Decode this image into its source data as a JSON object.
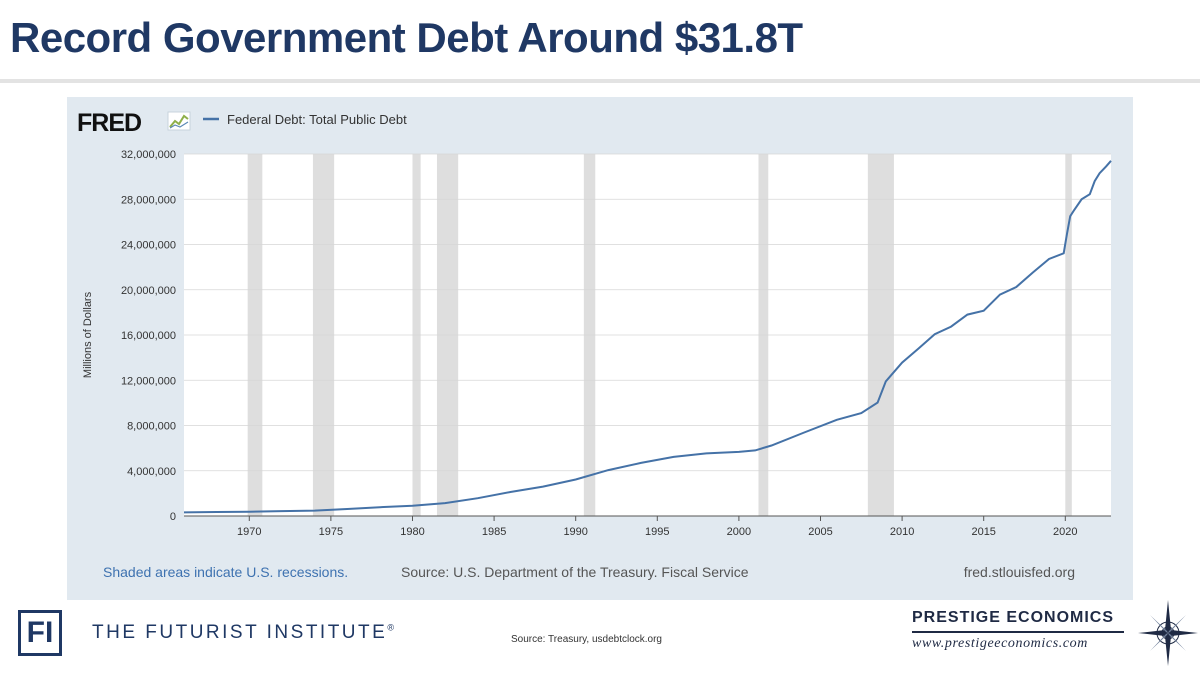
{
  "slide": {
    "title": "Record Government Debt Around $31.8T"
  },
  "fred": {
    "logo_text": "FRED",
    "legend_label": "Federal Debt: Total Public Debt",
    "footer_recessions": "Shaded areas indicate U.S. recessions.",
    "footer_source": "Source: U.S. Department of the Treasury. Fiscal Service",
    "footer_site": "fred.stlouisfed.org"
  },
  "footer": {
    "fi_logo": "FI",
    "fi_name": "THE FUTURIST INSTITUTE",
    "fi_mark": "®",
    "source": "Source: Treasury, usdebtclock.org",
    "prestige_name": "PRESTIGE ECONOMICS",
    "prestige_url": "www.prestigeeconomics.com"
  },
  "chart_data": {
    "type": "line",
    "title": "",
    "xlabel": "",
    "ylabel": "Millions of Dollars",
    "xlim": [
      1966,
      2022.8
    ],
    "ylim": [
      0,
      32000000
    ],
    "y_ticks": [
      0,
      4000000,
      8000000,
      12000000,
      16000000,
      20000000,
      24000000,
      28000000,
      32000000
    ],
    "y_tick_labels": [
      "0",
      "4,000,000",
      "8,000,000",
      "12,000,000",
      "16,000,000",
      "20,000,000",
      "24,000,000",
      "28,000,000",
      "32,000,000"
    ],
    "x_ticks": [
      1970,
      1975,
      1980,
      1985,
      1990,
      1995,
      2000,
      2005,
      2010,
      2015,
      2020
    ],
    "x_tick_labels": [
      "1970",
      "1975",
      "1980",
      "1985",
      "1990",
      "1995",
      "2000",
      "2005",
      "2010",
      "2015",
      "2020"
    ],
    "grid": true,
    "line_color": "#4572a7",
    "recession_color": "#dedede",
    "recessions": [
      [
        1969.9,
        1970.8
      ],
      [
        1973.9,
        1975.2
      ],
      [
        1980.0,
        1980.5
      ],
      [
        1981.5,
        1982.8
      ],
      [
        1990.5,
        1991.2
      ],
      [
        2001.2,
        2001.8
      ],
      [
        2007.9,
        2009.5
      ],
      [
        2020.0,
        2020.4
      ]
    ],
    "series": [
      {
        "name": "Federal Debt: Total Public Debt",
        "x": [
          1966,
          1968,
          1970,
          1972,
          1974,
          1976,
          1978,
          1980,
          1982,
          1984,
          1986,
          1988,
          1990,
          1992,
          1994,
          1996,
          1998,
          2000,
          2001,
          2002,
          2004,
          2006,
          2007.5,
          2008.5,
          2009,
          2010,
          2011,
          2012,
          2013,
          2014,
          2015,
          2016,
          2017,
          2018,
          2019,
          2019.9,
          2020.1,
          2020.3,
          2020.5,
          2021,
          2021.5,
          2021.8,
          2022.1,
          2022.5,
          2022.8
        ],
        "values": [
          320000,
          350000,
          380000,
          430000,
          480000,
          620000,
          780000,
          900000,
          1140000,
          1570000,
          2120000,
          2600000,
          3230000,
          4060000,
          4690000,
          5220000,
          5530000,
          5670000,
          5800000,
          6230000,
          7380000,
          8500000,
          9100000,
          10020000,
          11900000,
          13560000,
          14800000,
          16070000,
          16740000,
          17800000,
          18150000,
          19570000,
          20240000,
          21520000,
          22720000,
          23220000,
          24900000,
          26500000,
          26950000,
          28000000,
          28450000,
          29600000,
          30300000,
          30900000,
          31400000
        ]
      }
    ]
  }
}
